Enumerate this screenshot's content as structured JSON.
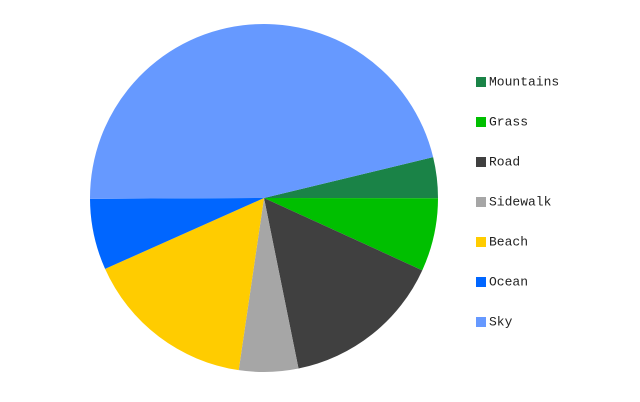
{
  "chart_data": {
    "type": "pie",
    "categories": [
      "Mountains",
      "Grass",
      "Road",
      "Sidewalk",
      "Beach",
      "Ocean",
      "Sky"
    ],
    "values": [
      3.8,
      6.8,
      15,
      5.5,
      16,
      6.6,
      46.3
    ],
    "colors": [
      "#1a8347",
      "#00bf00",
      "#404040",
      "#a6a6a6",
      "#ffcc00",
      "#0066ff",
      "#6699ff"
    ],
    "legend": "right"
  }
}
